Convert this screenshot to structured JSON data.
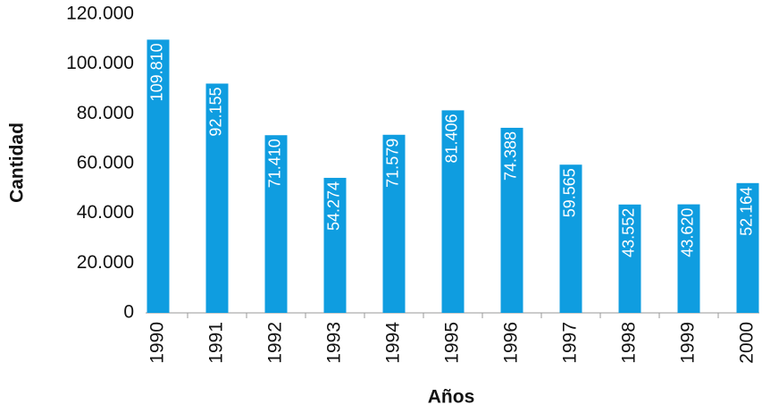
{
  "chart_data": {
    "type": "bar",
    "xlabel": "Años",
    "ylabel": "Cantidad",
    "categories": [
      "1990",
      "1991",
      "1992",
      "1993",
      "1994",
      "1995",
      "1996",
      "1997",
      "1998",
      "1999",
      "2000"
    ],
    "values": [
      109810,
      92155,
      71410,
      54274,
      71579,
      81406,
      74388,
      59565,
      43552,
      43620,
      52164
    ],
    "value_labels": [
      "109.810",
      "92.155",
      "71.410",
      "54.274",
      "71.579",
      "81.406",
      "74.388",
      "59.565",
      "43.552",
      "43.620",
      "52.164"
    ],
    "color": "#0f9de0",
    "ylim": [
      0,
      120000
    ],
    "yticks": [
      0,
      {
        "value": 20000,
        "label": "20.000"
      },
      {
        "value": 40000,
        "label": "40.000"
      },
      {
        "value": 60000,
        "label": "60.000"
      },
      {
        "value": 80000,
        "label": "80.000"
      },
      {
        "value": 100000,
        "label": "100.000"
      },
      {
        "value": 120000,
        "label": "120.000"
      }
    ]
  }
}
